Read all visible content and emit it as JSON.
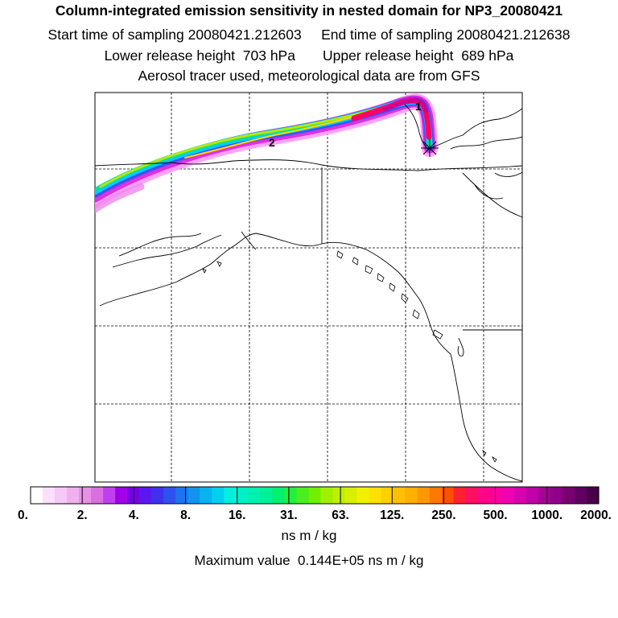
{
  "header": {
    "title": "Column-integrated emission sensitivity in nested domain for NP3_20080421",
    "line2_left": "Start time of sampling 20080421.212603",
    "line2_right": "End time of sampling 20080421.212638",
    "line3_left": "Lower release height  703 hPa",
    "line3_right": "Upper release height  689 hPa",
    "line4": "Aerosol tracer used, meteorological data are from GFS"
  },
  "map": {
    "markers": [
      "1",
      "2"
    ],
    "release_point_icon": "asterisk-icon",
    "plume_colors": [
      "#ff99ff",
      "#e030e0",
      "#b000ff",
      "#3050ff",
      "#00ccff",
      "#00e0a0",
      "#a0e000",
      "#ffdd00",
      "#ff8800",
      "#ff0066",
      "#cc0099"
    ]
  },
  "colorbar": {
    "tick_labels": [
      "0.",
      "2.",
      "4.",
      "8.",
      "16.",
      "31.",
      "63.",
      "125.",
      "250.",
      "500.",
      "1000.",
      "2000."
    ],
    "colors": [
      "#ffffff",
      "#fbe0fb",
      "#f6c8f6",
      "#f0b0f0",
      "#e890e8",
      "#d870e0",
      "#c040f0",
      "#a000e8",
      "#7800e8",
      "#5a18f0",
      "#4030f0",
      "#3050f0",
      "#1c74f0",
      "#1094f0",
      "#08b4f0",
      "#00d0f0",
      "#00f0e0",
      "#00f0c8",
      "#00f0b0",
      "#00f098",
      "#00f070",
      "#20f040",
      "#48f020",
      "#70f000",
      "#a0f000",
      "#c0f000",
      "#d8f000",
      "#f0f000",
      "#ffe000",
      "#ffd000",
      "#ffc000",
      "#ffb000",
      "#ff9800",
      "#ff7800",
      "#ff5000",
      "#ff2030",
      "#ff1060",
      "#ff0888",
      "#ff00a0",
      "#f000b0",
      "#d800b0",
      "#c000a8",
      "#a80098",
      "#900088",
      "#780070",
      "#600060",
      "#480048"
    ],
    "unit": "ns m / kg",
    "max_value_text": "Maximum value  0.144E+05 ns m / kg"
  }
}
